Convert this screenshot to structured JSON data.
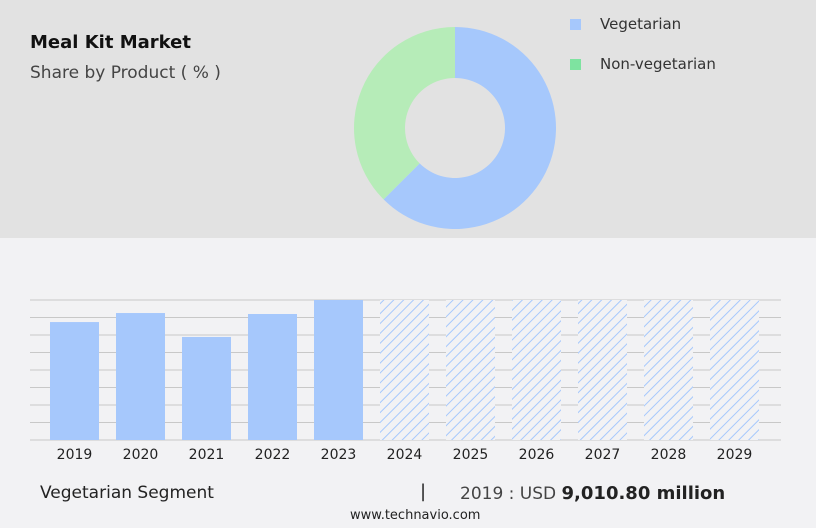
{
  "header": {
    "title": "Meal Kit Market",
    "subtitle": "Share by Product ( % )"
  },
  "chart_data": [
    {
      "type": "pie",
      "donut": true,
      "categories": [
        "Vegetarian",
        "Non-vegetarian"
      ],
      "values": [
        62.5,
        37.5
      ],
      "colors": [
        "#a6c8fc",
        "#b6ecb8"
      ],
      "legend_colors": [
        "#a6c8fc",
        "#7ee3a0"
      ],
      "legend": "top-right"
    },
    {
      "type": "bar",
      "categories": [
        "2019",
        "2020",
        "2021",
        "2022",
        "2023",
        "2024",
        "2025",
        "2026",
        "2027",
        "2028",
        "2029"
      ],
      "values": [
        9010.8,
        9700,
        7870,
        9625,
        10695,
        null,
        null,
        null,
        null,
        null,
        null
      ],
      "forecast_hatched": [
        "2024",
        "2025",
        "2026",
        "2027",
        "2028",
        "2029"
      ],
      "ylim": [
        0,
        10695
      ],
      "grid": true,
      "color": "#a6c8fc",
      "ylabel": "",
      "xlabel": ""
    }
  ],
  "footer": {
    "segment": "Vegetarian Segment",
    "separator": "|",
    "year_prefix": "2019 : USD ",
    "value": "9,010.80 million",
    "url": "www.technavio.com"
  }
}
